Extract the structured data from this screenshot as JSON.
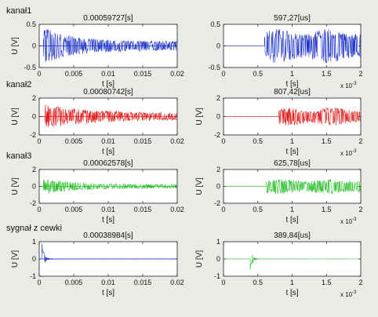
{
  "chart_data": [
    {
      "type": "line",
      "row": 0,
      "col": 0,
      "row_label": "kanał1",
      "title": "0.00059727[s]",
      "xlabel": "t [s]",
      "ylabel": "U [V]",
      "xlim": [
        0,
        0.02
      ],
      "ylim": [
        -0.5,
        0.5
      ],
      "xticks": [
        "0",
        "0.005",
        "0.01",
        "0.015",
        "0.02"
      ],
      "yticks": [
        "0.5",
        "0",
        "-0.5"
      ],
      "series": [
        {
          "color": "#2338c8",
          "onset": 0.0006,
          "amplitude": 0.45,
          "decay": "strong"
        }
      ]
    },
    {
      "type": "line",
      "row": 0,
      "col": 1,
      "title": "597,27[us]",
      "xlabel": "t [s]",
      "ylabel": "",
      "xlim": [
        0,
        2
      ],
      "xscale": "x 10-3",
      "ylim": [
        -0.5,
        0.5
      ],
      "xticks": [
        "0",
        "0.5",
        "1",
        "1.5",
        "2"
      ],
      "yticks": [
        "0.5",
        "0",
        "-0.5"
      ],
      "series": [
        {
          "color": "#2338c8",
          "onset": 0.597,
          "amplitude": 0.4
        }
      ]
    },
    {
      "type": "line",
      "row": 1,
      "col": 0,
      "row_label": "kanał2",
      "title": "0.00080742[s]",
      "xlabel": "t [s]",
      "ylabel": "U [V]",
      "xlim": [
        0,
        0.02
      ],
      "ylim": [
        -2,
        2
      ],
      "xticks": [
        "0",
        "0.005",
        "0.01",
        "0.015",
        "0.02"
      ],
      "yticks": [
        "2",
        "0",
        "-2"
      ],
      "series": [
        {
          "color": "#e02020",
          "onset": 0.0008,
          "amplitude": 1.3,
          "decay": "medium"
        }
      ]
    },
    {
      "type": "line",
      "row": 1,
      "col": 1,
      "title": "807,42[us]",
      "xlabel": "t [s]",
      "ylabel": "U [V]",
      "xlim": [
        0,
        2
      ],
      "xscale": "x 10-3",
      "ylim": [
        -2,
        2
      ],
      "xticks": [
        "0",
        "0.5",
        "1",
        "1.5",
        "2"
      ],
      "yticks": [
        "2",
        "0",
        "-2"
      ],
      "series": [
        {
          "color": "#e02020",
          "onset": 0.807,
          "amplitude": 1.0
        }
      ]
    },
    {
      "type": "line",
      "row": 2,
      "col": 0,
      "row_label": "kanał3",
      "title": "0.00062578[s]",
      "xlabel": "t [s]",
      "ylabel": "U [V]",
      "xlim": [
        0,
        0.02
      ],
      "ylim": [
        -2,
        2
      ],
      "xticks": [
        "0",
        "0.005",
        "0.01",
        "0.015",
        "0.02"
      ],
      "yticks": [
        "2",
        "0",
        "-2"
      ],
      "series": [
        {
          "color": "#2ec02e",
          "onset": 0.0006,
          "amplitude": 1.0,
          "decay": "strong"
        }
      ]
    },
    {
      "type": "line",
      "row": 2,
      "col": 1,
      "title": "625,78[us]",
      "xlabel": "t [s]",
      "ylabel": "U [V]",
      "xlim": [
        0,
        2
      ],
      "xscale": "x 10-3",
      "ylim": [
        -2,
        2
      ],
      "xticks": [
        "0",
        "0.5",
        "1",
        "1.5",
        "2"
      ],
      "yticks": [
        "2",
        "0",
        "-2"
      ],
      "series": [
        {
          "color": "#2ec02e",
          "onset": 0.626,
          "amplitude": 0.9
        }
      ]
    },
    {
      "type": "line",
      "row": 3,
      "col": 0,
      "row_label": "sygnał z cewki",
      "title": "0.00038984[s]",
      "xlabel": "t [s]",
      "ylabel": "U [V]",
      "xlim": [
        0,
        0.02
      ],
      "ylim": [
        -1,
        1
      ],
      "xticks": [
        "0",
        "0.005",
        "0.01",
        "0.015",
        "0.02"
      ],
      "yticks": [
        "1",
        "0",
        "-1"
      ],
      "series": [
        {
          "color": "#2338c8",
          "onset": 0.0004,
          "amplitude": 0.9,
          "decay": "spike"
        }
      ]
    },
    {
      "type": "line",
      "row": 3,
      "col": 1,
      "title": "389,84[us]",
      "xlabel": "t [s]",
      "ylabel": "U [V]",
      "xlim": [
        0,
        2
      ],
      "xscale": "x 10-3",
      "ylim": [
        -1,
        1
      ],
      "xticks": [
        "0",
        "0.5",
        "1",
        "1.5",
        "2"
      ],
      "yticks": [
        "1",
        "0",
        "-1"
      ],
      "series": [
        {
          "color": "#2ec02e",
          "onset": 0.39,
          "amplitude": 0.8,
          "decay": "spike"
        }
      ]
    }
  ]
}
